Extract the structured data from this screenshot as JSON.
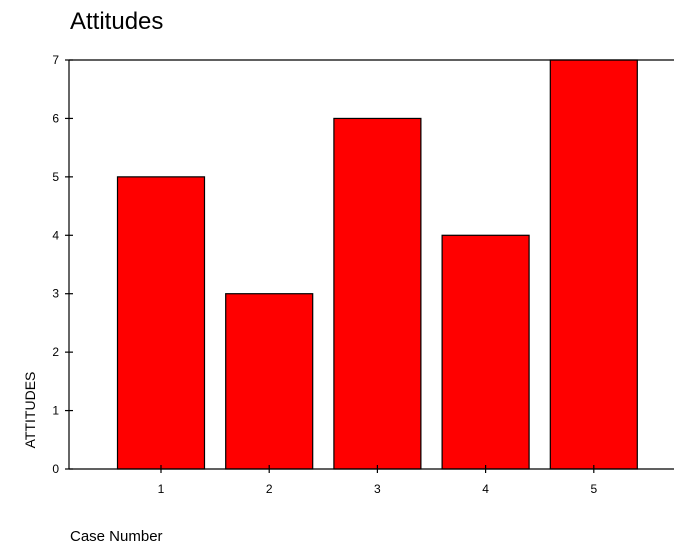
{
  "chart_data": {
    "type": "bar",
    "title": "Attitudes",
    "xlabel": "Case Number",
    "ylabel": "ATTITUDES",
    "categories": [
      "1",
      "2",
      "3",
      "4",
      "5"
    ],
    "values": [
      5,
      3,
      6,
      4,
      7
    ],
    "ylim": [
      0,
      7
    ],
    "yticks": [
      "0",
      "1",
      "2",
      "3",
      "4",
      "5",
      "6",
      "7"
    ],
    "grid": false,
    "bar_color": "#ff0000",
    "bar_edge_color": "#000000"
  }
}
